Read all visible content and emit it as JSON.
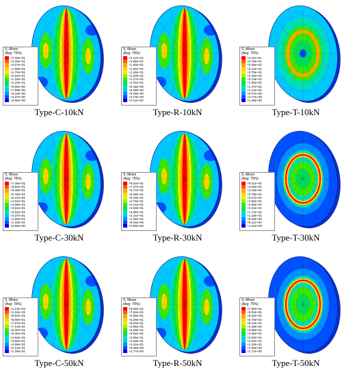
{
  "legend_header": [
    "S, Mises",
    "(Avg: 75%)"
  ],
  "legend_colors": [
    "#ff0000",
    "#ff5a00",
    "#ffa600",
    "#ffd400",
    "#e8f000",
    "#9cf000",
    "#38e800",
    "#00e05a",
    "#00e0b0",
    "#00c8ff",
    "#0090ff",
    "#0050ff",
    "#0000e8"
  ],
  "panels": [
    {
      "caption": "Type-C-10kN",
      "pattern": "strip",
      "values": [
        "+2.43e+01",
        "+2.25e+01",
        "+2.07e+01",
        "+1.89e+01",
        "+1.70e+01",
        "+1.52e+01",
        "+1.34e+01",
        "+1.16e+01",
        "+9.80e+00",
        "+7.98e+00",
        "+6.18e+00",
        "+4.37e+00",
        "+2.55e+00"
      ]
    },
    {
      "caption": "Type-R-10kN",
      "pattern": "strip",
      "values": [
        "+2.12e+01",
        "+1.96e+01",
        "+1.80e+01",
        "+1.64e+01",
        "+1.48e+01",
        "+1.33e+01",
        "+1.17e+01",
        "+1.01e+01",
        "+8.46e+00",
        "+6.89e+00",
        "+5.29e+00",
        "+3.70e+00",
        "+2.11e+00"
      ]
    },
    {
      "caption": "Type-T-10kN",
      "pattern": "ring",
      "values": [
        "+4.11e+01",
        "+3.78e+01",
        "+3.45e+01",
        "+3.12e+01",
        "+2.79e+01",
        "+2.46e+01",
        "+2.13e+01",
        "+1.80e+01",
        "+1.47e+01",
        "+1.14e+01",
        "+8.07e+00",
        "+4.77e+00",
        "+1.46e+00"
      ]
    },
    {
      "caption": "Type-C-30kN",
      "pattern": "strip",
      "values": [
        "+7.49e+01",
        "+6.92e+01",
        "+6.35e+01",
        "+5.78e+01",
        "+5.21e+01",
        "+4.64e+01",
        "+4.08e+01",
        "+3.51e+01",
        "+2.94e+01",
        "+2.37e+01",
        "+1.80e+01",
        "+1.23e+01",
        "+6.65e+00"
      ]
    },
    {
      "caption": "Type-R-30kN",
      "pattern": "strip",
      "values": [
        "+8.02e+01",
        "+7.37e+01",
        "+6.72e+01",
        "+6.08e+01",
        "+5.43e+01",
        "+4.79e+01",
        "+4.14e+01",
        "+3.50e+01",
        "+2.85e+01",
        "+2.21e+01",
        "+1.56e+01",
        "+9.15e+00",
        "+2.65e+00"
      ]
    },
    {
      "caption": "Type-T-30kN",
      "pattern": "ring_full",
      "values": [
        "+5.01e+01",
        "+4.60e+01",
        "+4.19e+01",
        "+3.78e+01",
        "+3.37e+01",
        "+2.96e+01",
        "+2.56e+01",
        "+2.15e+01",
        "+1.74e+01",
        "+1.33e+01",
        "+9.20e+00",
        "+5.11e+00",
        "+1.02e+00"
      ]
    },
    {
      "caption": "Type-C-50kN",
      "pattern": "strip",
      "values": [
        "+1.13e+02",
        "+1.04e+02",
        "+9.64e+01",
        "+8.80e+01",
        "+7.97e+01",
        "+7.14e+01",
        "+6.30e+01",
        "+5.46e+01",
        "+4.63e+01",
        "+3.80e+01",
        "+2.96e+01",
        "+2.13e+01",
        "+1.29e+01"
      ]
    },
    {
      "caption": "Type-R-50kN",
      "pattern": "strip",
      "values": [
        "+8.28e+01",
        "+7.62e+01",
        "+6.96e+01",
        "+6.29e+01",
        "+5.62e+01",
        "+4.96e+01",
        "+4.29e+01",
        "+3.62e+01",
        "+2.95e+01",
        "+2.28e+01",
        "+1.61e+01",
        "+9.46e+00",
        "+2.77e+00"
      ]
    },
    {
      "caption": "Type-T-50kN",
      "pattern": "ring_full",
      "values": [
        "+7.55e+01",
        "+6.93e+01",
        "+6.32e+01",
        "+5.70e+01",
        "+5.10e+01",
        "+4.48e+01",
        "+3.86e+01",
        "+3.25e+01",
        "+2.63e+01",
        "+2.02e+01",
        "+1.40e+01",
        "+7.86e+00",
        "+1.72e+00"
      ]
    }
  ]
}
